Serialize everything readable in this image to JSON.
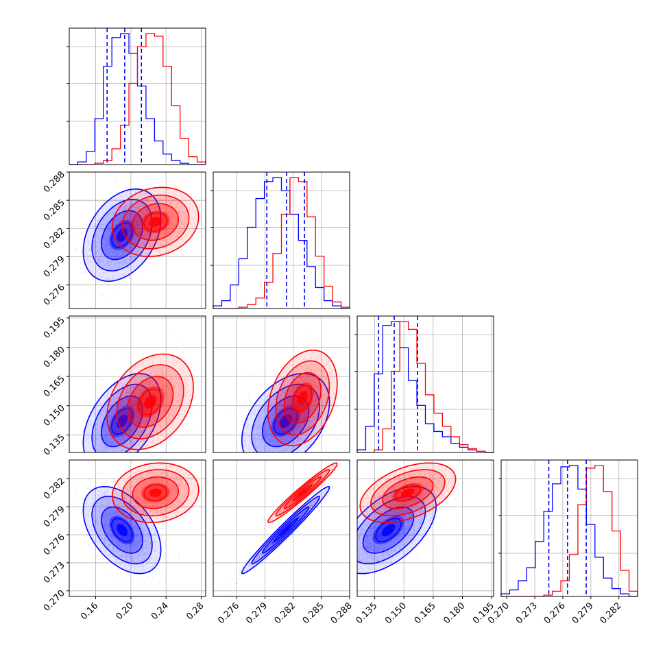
{
  "chart_data": {
    "type": "scatter",
    "subtype": "corner-plot",
    "title": "",
    "grid": true,
    "series": [
      {
        "color": "#0000ff"
      },
      {
        "color": "#ff0000"
      }
    ],
    "parameters": [
      {
        "range": [
          0.13,
          0.285
        ],
        "ticks": [
          "0.16",
          "0.20",
          "0.24",
          "0.28"
        ],
        "tick_values": [
          0.16,
          0.2,
          0.24,
          0.28
        ]
      },
      {
        "range": [
          0.2735,
          0.288
        ],
        "ticks": [
          "0.276",
          "0.279",
          "0.282",
          "0.285",
          "0.288"
        ],
        "tick_values": [
          0.276,
          0.279,
          0.282,
          0.285,
          0.288
        ]
      },
      {
        "range": [
          0.126,
          0.196
        ],
        "ticks": [
          "0.135",
          "0.150",
          "0.165",
          "0.180",
          "0.195"
        ],
        "tick_values": [
          0.135,
          0.15,
          0.165,
          0.18,
          0.195
        ]
      },
      {
        "range": [
          0.2694,
          0.284
        ],
        "ticks": [
          "0.270",
          "0.273",
          "0.276",
          "0.279",
          "0.282"
        ],
        "tick_values": [
          0.27,
          0.273,
          0.276,
          0.279,
          0.282
        ]
      }
    ],
    "quantiles_blue": [
      [
        0.173,
        0.193,
        0.212
      ],
      [
        0.2792,
        0.2813,
        0.2832
      ],
      [
        0.137,
        0.145,
        0.157
      ],
      [
        0.2745,
        0.2765,
        0.2785
      ]
    ],
    "marginals": {
      "blue": [
        [
          0.0,
          0.02,
          0.1,
          0.35,
          0.75,
          0.97,
          1.0,
          0.85,
          0.6,
          0.35,
          0.18,
          0.08,
          0.03,
          0.01,
          0.0,
          0.0
        ],
        [
          0.02,
          0.06,
          0.18,
          0.38,
          0.62,
          0.84,
          0.97,
          1.0,
          0.9,
          0.72,
          0.52,
          0.32,
          0.16,
          0.06,
          0.02,
          0.0
        ],
        [
          0.02,
          0.2,
          0.6,
          0.97,
          1.0,
          0.8,
          0.55,
          0.36,
          0.22,
          0.16,
          0.12,
          0.07,
          0.04,
          0.02,
          0.01,
          0.0
        ],
        [
          0.02,
          0.05,
          0.12,
          0.22,
          0.42,
          0.65,
          0.86,
          0.99,
          1.0,
          0.82,
          0.55,
          0.3,
          0.14,
          0.06,
          0.02,
          0.0
        ]
      ],
      "red": [
        [
          0.0,
          0.0,
          0.0,
          0.01,
          0.03,
          0.12,
          0.3,
          0.62,
          0.9,
          1.0,
          0.98,
          0.75,
          0.45,
          0.2,
          0.06,
          0.02
        ],
        [
          0.0,
          0.0,
          0.0,
          0.01,
          0.03,
          0.08,
          0.2,
          0.42,
          0.72,
          1.0,
          0.97,
          0.7,
          0.4,
          0.17,
          0.05,
          0.01
        ],
        [
          0.0,
          0.0,
          0.02,
          0.18,
          0.62,
          1.0,
          0.94,
          0.68,
          0.44,
          0.3,
          0.2,
          0.12,
          0.06,
          0.03,
          0.01,
          0.0
        ],
        [
          0.0,
          0.0,
          0.0,
          0.0,
          0.0,
          0.01,
          0.04,
          0.12,
          0.32,
          0.7,
          0.98,
          1.0,
          0.8,
          0.5,
          0.2,
          0.04
        ]
      ]
    },
    "joint": [
      {
        "row": 1,
        "col": 0,
        "blue": {
          "mean": [
            0.19,
            0.2813
          ],
          "sd": [
            0.018,
            0.002
          ],
          "rho": 0.35
        },
        "red": {
          "mean": [
            0.228,
            0.2827
          ],
          "sd": [
            0.02,
            0.0015
          ],
          "rho": 0.15
        }
      },
      {
        "row": 2,
        "col": 0,
        "blue": {
          "mean": [
            0.19,
            0.142
          ],
          "sd": [
            0.018,
            0.01
          ],
          "rho": 0.45
        },
        "red": {
          "mean": [
            0.222,
            0.152
          ],
          "sd": [
            0.02,
            0.01
          ],
          "rho": 0.3
        }
      },
      {
        "row": 2,
        "col": 1,
        "blue": {
          "mean": [
            0.2812,
            0.142
          ],
          "sd": [
            0.0019,
            0.01
          ],
          "rho": 0.4
        },
        "red": {
          "mean": [
            0.283,
            0.154
          ],
          "sd": [
            0.0015,
            0.01
          ],
          "rho": 0.3
        }
      },
      {
        "row": 3,
        "col": 0,
        "blue": {
          "mean": [
            0.19,
            0.2765
          ],
          "sd": [
            0.018,
            0.0019
          ],
          "rho": -0.45
        },
        "red": {
          "mean": [
            0.228,
            0.2805
          ],
          "sd": [
            0.02,
            0.0013
          ],
          "rho": 0.1
        }
      },
      {
        "row": 3,
        "col": 1,
        "blue": {
          "mean": [
            0.2812,
            0.2765
          ],
          "sd": [
            0.0019,
            0.0019
          ],
          "rho": 0.98
        },
        "red": {
          "mean": [
            0.283,
            0.2805
          ],
          "sd": [
            0.0015,
            0.0013
          ],
          "rho": 0.97
        }
      },
      {
        "row": 3,
        "col": 2,
        "blue": {
          "mean": [
            0.142,
            0.2765
          ],
          "sd": [
            0.01,
            0.0019
          ],
          "rho": 0.55
        },
        "red": {
          "mean": [
            0.152,
            0.2805
          ],
          "sd": [
            0.01,
            0.0013
          ],
          "rho": 0.45
        }
      }
    ]
  }
}
